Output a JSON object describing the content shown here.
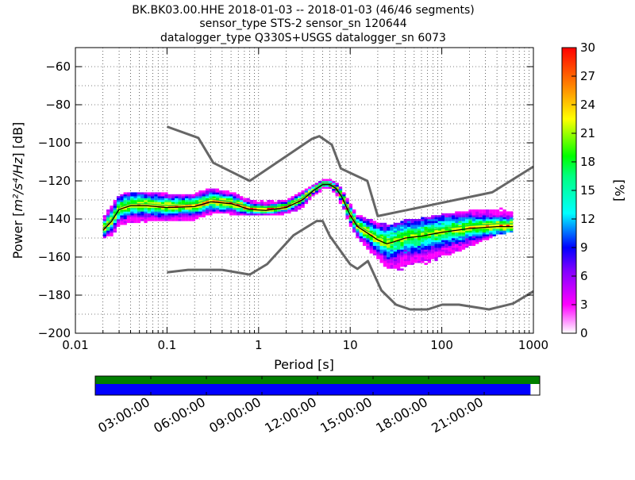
{
  "title_lines": [
    "BK.BK03.00.HHE   2018-01-03 -- 2018-01-03  (46/46 segments)",
    "sensor_type STS-2 sensor_sn 120644",
    "datalogger_type Q330S+USGS datalogger_sn 6073"
  ],
  "colors": {
    "noise_model": "#666666",
    "mode_curve": "#000000",
    "mean_curve": "#00d43c",
    "availability_top": "#007f00",
    "availability_bottom": "#0000ff"
  },
  "chart_data": {
    "type": "heatmap",
    "title": "BK.BK03.00.HHE   2018-01-03 -- 2018-01-03  (46/46 segments)",
    "xlabel": "Period [s]",
    "ylabel_prefix": "Power [",
    "ylabel_units": "m²/s⁴/Hz",
    "ylabel_suffix": "] [dB]",
    "x_scale": "log",
    "xlim": [
      0.01,
      1000
    ],
    "ylim": [
      -200,
      -50
    ],
    "x_ticks": [
      {
        "value": 0.01,
        "label": "0.01"
      },
      {
        "value": 0.1,
        "label": "0.1"
      },
      {
        "value": 1,
        "label": "1"
      },
      {
        "value": 10,
        "label": "10"
      },
      {
        "value": 100,
        "label": "100"
      },
      {
        "value": 1000,
        "label": "1000"
      }
    ],
    "y_ticks": [
      {
        "value": -60,
        "label": "−60"
      },
      {
        "value": -80,
        "label": "−80"
      },
      {
        "value": -100,
        "label": "−100"
      },
      {
        "value": -120,
        "label": "−120"
      },
      {
        "value": -140,
        "label": "−140"
      },
      {
        "value": -160,
        "label": "−160"
      },
      {
        "value": -180,
        "label": "−180"
      },
      {
        "value": -200,
        "label": "−200"
      }
    ],
    "grid": true,
    "colorbar": {
      "label": "[%]",
      "range": [
        0,
        30
      ],
      "ticks": [
        {
          "value": 0,
          "label": "0"
        },
        {
          "value": 3,
          "label": "3"
        },
        {
          "value": 6,
          "label": "6"
        },
        {
          "value": 9,
          "label": "9"
        },
        {
          "value": 12,
          "label": "12"
        },
        {
          "value": 15,
          "label": "15"
        },
        {
          "value": 18,
          "label": "18"
        },
        {
          "value": 21,
          "label": "21"
        },
        {
          "value": 24,
          "label": "24"
        },
        {
          "value": 27,
          "label": "27"
        },
        {
          "value": 30,
          "label": "30"
        }
      ]
    },
    "noise_models": [
      {
        "name": "high",
        "x": [
          0.1,
          0.22,
          0.32,
          0.8,
          3.8,
          4.6,
          6.3,
          7.9,
          15.4,
          20,
          354.8,
          1000
        ],
        "y": [
          -91.5,
          -97.4,
          -110.5,
          -120,
          -98,
          -96.5,
          -101,
          -113.5,
          -120,
          -138.5,
          -126,
          -112.5
        ]
      },
      {
        "name": "low",
        "x": [
          0.1,
          0.17,
          0.4,
          0.8,
          1.24,
          2.4,
          4.3,
          5,
          6,
          10,
          12,
          15.6,
          21.9,
          31.6,
          45,
          70,
          101,
          154,
          328,
          600,
          1000
        ],
        "y": [
          -168,
          -166.7,
          -166.7,
          -169.2,
          -163.7,
          -148.6,
          -141.1,
          -141.1,
          -149,
          -163.8,
          -166.2,
          -162.1,
          -177.5,
          -185,
          -187.5,
          -187.5,
          -185,
          -185,
          -187.5,
          -184.4,
          -178
        ]
      }
    ],
    "mode_curve": {
      "x": [
        0.02,
        0.025,
        0.03,
        0.04,
        0.06,
        0.1,
        0.2,
        0.3,
        0.5,
        0.8,
        1.2,
        2,
        3,
        4,
        5,
        6,
        7,
        8,
        10,
        12,
        15,
        20,
        25,
        30,
        40,
        60,
        100,
        200,
        400,
        600
      ],
      "y": [
        -146,
        -141,
        -135,
        -133,
        -133,
        -134,
        -133.5,
        -131,
        -132,
        -135,
        -135.5,
        -134,
        -130,
        -125,
        -122,
        -122,
        -124,
        -128,
        -138,
        -144,
        -147,
        -151,
        -153,
        -152,
        -150,
        -149,
        -147,
        -145,
        -144,
        -144
      ]
    },
    "mean_curve": {
      "x": [
        0.02,
        0.025,
        0.03,
        0.04,
        0.06,
        0.1,
        0.2,
        0.3,
        0.5,
        0.8,
        1.2,
        2,
        3,
        4,
        5,
        6,
        7,
        8,
        10,
        12,
        15,
        20,
        25,
        30,
        40,
        60,
        100,
        200,
        400,
        600
      ],
      "y": [
        -145,
        -140,
        -134,
        -132,
        -132,
        -133,
        -132,
        -129.5,
        -131,
        -133.5,
        -134,
        -133,
        -129,
        -124.5,
        -121.5,
        -121.5,
        -123.5,
        -127,
        -136,
        -143,
        -146,
        -149,
        -151,
        -150,
        -148,
        -147,
        -145,
        -143.5,
        -142.5,
        -142.5
      ]
    },
    "histogram_envelope": {
      "x": [
        0.02,
        0.025,
        0.03,
        0.04,
        0.06,
        0.1,
        0.2,
        0.3,
        0.5,
        0.8,
        1.2,
        2,
        3,
        4,
        5,
        6,
        7,
        8,
        10,
        12,
        15,
        20,
        25,
        30,
        40,
        60,
        100,
        200,
        400,
        600
      ],
      "y_top": [
        -140,
        -134,
        -129,
        -127,
        -127,
        -128,
        -128,
        -125,
        -127,
        -131,
        -132,
        -131,
        -127,
        -123,
        -120,
        -120,
        -122,
        -125,
        -133,
        -139,
        -141,
        -143,
        -144,
        -144,
        -142,
        -141,
        -139,
        -137,
        -136,
        -134
      ],
      "y_bottom": [
        -150,
        -148,
        -144,
        -142,
        -141,
        -141,
        -140,
        -137,
        -137,
        -138,
        -138,
        -137,
        -134,
        -128,
        -124,
        -124,
        -127,
        -132,
        -143,
        -150,
        -155,
        -160,
        -166,
        -168,
        -166,
        -164,
        -160,
        -154,
        -148,
        -146
      ]
    },
    "availability": {
      "time_ticks": [
        "03:00:00",
        "06:00:00",
        "09:00:00",
        "12:00:00",
        "15:00:00",
        "18:00:00",
        "21:00:00"
      ],
      "time_range_hours": [
        0,
        24
      ],
      "green_coverage": [
        0,
        24
      ],
      "blue_coverage": [
        0,
        23.5
      ]
    }
  }
}
